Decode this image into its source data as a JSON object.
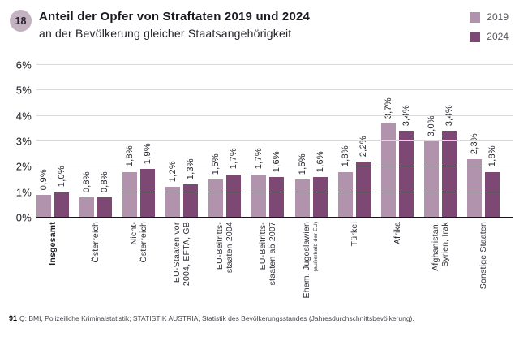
{
  "header": {
    "badge": "18",
    "title": "Anteil der Opfer von Straftaten 2019 und 2024",
    "subtitle": "an der Bevölkerung gleicher Staatsangehörigkeit"
  },
  "chart_data": {
    "type": "bar",
    "title": "Anteil der Opfer von Straftaten 2019 und 2024 an der Bevölkerung gleicher Staatsangehörigkeit",
    "categories": [
      {
        "label": "Insgesamt",
        "bold": true
      },
      {
        "label": "Österreich"
      },
      {
        "label": "Nicht-\nÖsterreich"
      },
      {
        "label": "EU-Staaten vor\n2004, EFTA, GB"
      },
      {
        "label": "EU-Beitritts-\nstaaten 2004"
      },
      {
        "label": "EU-Beitritts-\nstaaten ab 2007"
      },
      {
        "label": "Ehem. Jugoslawien",
        "note": "(außerhalb der EU)"
      },
      {
        "label": "Türkei"
      },
      {
        "label": "Afrika"
      },
      {
        "label": "Afghanistan,\nSyrien, Irak"
      },
      {
        "label": "Sonstige Staaten"
      }
    ],
    "series": [
      {
        "name": "2019",
        "color": "#b193ad",
        "values": [
          0.9,
          0.8,
          1.8,
          1.2,
          1.5,
          1.7,
          1.5,
          1.8,
          3.7,
          3.0,
          2.3
        ],
        "labels": [
          "0,9%",
          "0,8%",
          "1,8%",
          "1,2%",
          "1,5%",
          "1,7%",
          "1,5%",
          "1,8%",
          "3,7%",
          "3,0%",
          "2,3%"
        ]
      },
      {
        "name": "2024",
        "color": "#7d4874",
        "values": [
          1.0,
          0.8,
          1.9,
          1.3,
          1.7,
          1.6,
          1.6,
          2.2,
          3.4,
          3.4,
          1.8
        ],
        "labels": [
          "1,0%",
          "0,8%",
          "1,9%",
          "1,3%",
          "1,7%",
          "1,6%",
          "1,6%",
          "2,2%",
          "3,4%",
          "3,4%",
          "1,8%"
        ]
      }
    ],
    "ylim": [
      0,
      6
    ],
    "yticks": [
      "0%",
      "1%",
      "2%",
      "3%",
      "4%",
      "5%",
      "6%"
    ],
    "grid": true,
    "legend_position": "top-right",
    "xlabel": "",
    "ylabel": ""
  },
  "footer": {
    "ref": "91",
    "source": "Q: BMI, Polizeiliche Kriminalstatistik; STATISTIK AUSTRIA, Statistik des Bevölkerungsstandes (Jahresdurchschnittsbevölkerung)."
  }
}
